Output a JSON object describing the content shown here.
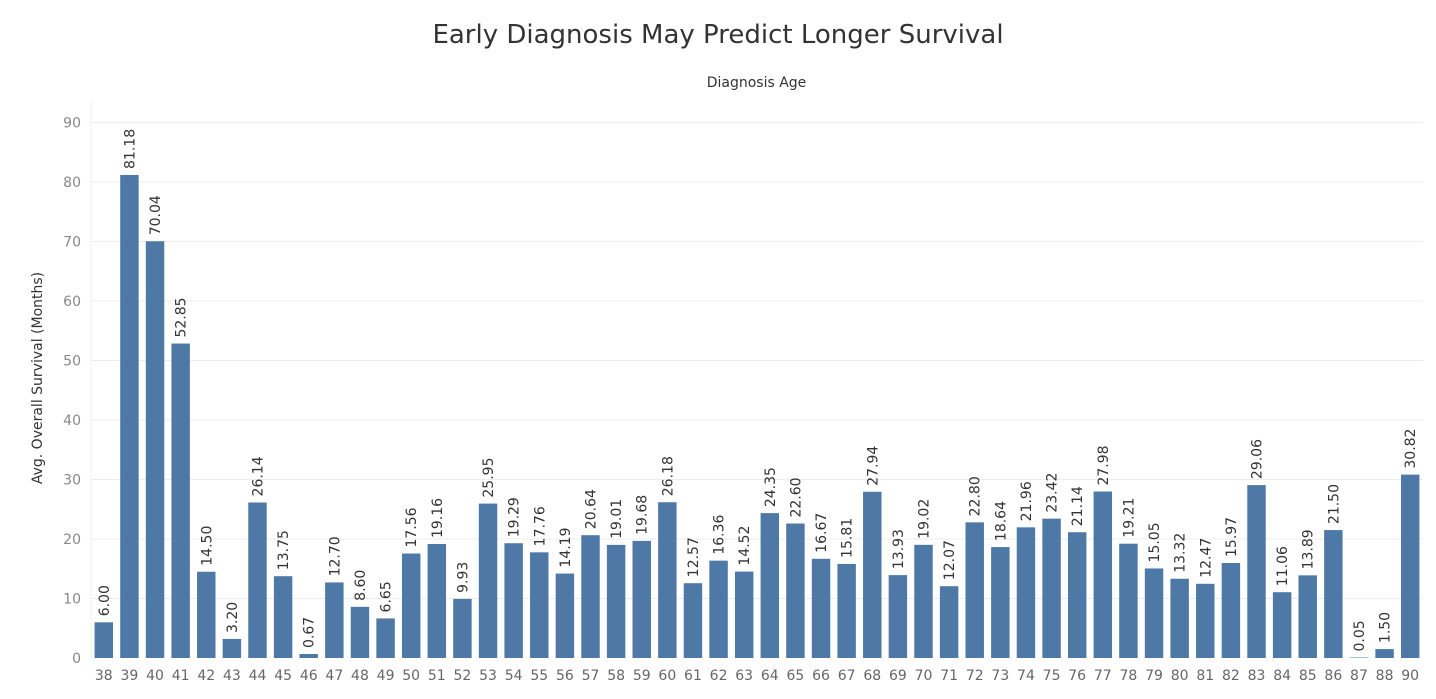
{
  "chart_data": {
    "type": "bar",
    "title": "Early Diagnosis May Predict Longer Survival",
    "subtitle": "Diagnosis Age",
    "xlabel": "",
    "ylabel": "Avg. Overall Survival (Months)",
    "ylim": [
      0,
      93
    ],
    "yticks": [
      0,
      10,
      20,
      30,
      40,
      50,
      60,
      70,
      80,
      90
    ],
    "grid": true,
    "color": "#4e79a7",
    "categories": [
      "38",
      "39",
      "40",
      "41",
      "42",
      "43",
      "44",
      "45",
      "46",
      "47",
      "48",
      "49",
      "50",
      "51",
      "52",
      "53",
      "54",
      "55",
      "56",
      "57",
      "58",
      "59",
      "60",
      "61",
      "62",
      "63",
      "64",
      "65",
      "66",
      "67",
      "68",
      "69",
      "70",
      "71",
      "72",
      "73",
      "74",
      "75",
      "76",
      "77",
      "78",
      "79",
      "80",
      "81",
      "82",
      "83",
      "84",
      "85",
      "86",
      "87",
      "88",
      "90"
    ],
    "values": [
      6.0,
      81.18,
      70.04,
      52.85,
      14.5,
      3.2,
      26.14,
      13.75,
      0.67,
      12.7,
      8.6,
      6.65,
      17.56,
      19.16,
      9.93,
      25.95,
      19.29,
      17.76,
      14.19,
      20.64,
      19.01,
      19.68,
      26.18,
      12.57,
      16.36,
      14.52,
      24.35,
      22.6,
      16.67,
      15.81,
      27.94,
      13.93,
      19.02,
      12.07,
      22.8,
      18.64,
      21.96,
      23.42,
      21.14,
      27.98,
      19.21,
      15.05,
      13.32,
      12.47,
      15.97,
      29.06,
      11.06,
      13.89,
      21.5,
      0.05,
      1.5,
      30.82
    ],
    "data_labels": [
      "6.00",
      "81.18",
      "70.04",
      "52.85",
      "14.50",
      "3.20",
      "26.14",
      "13.75",
      "0.67",
      "12.70",
      "8.60",
      "6.65",
      "17.56",
      "19.16",
      "9.93",
      "25.95",
      "19.29",
      "17.76",
      "14.19",
      "20.64",
      "19.01",
      "19.68",
      "26.18",
      "12.57",
      "16.36",
      "14.52",
      "24.35",
      "22.60",
      "16.67",
      "15.81",
      "27.94",
      "13.93",
      "19.02",
      "12.07",
      "22.80",
      "18.64",
      "21.96",
      "23.42",
      "21.14",
      "27.98",
      "19.21",
      "15.05",
      "13.32",
      "12.47",
      "15.97",
      "29.06",
      "11.06",
      "13.89",
      "21.50",
      "0.05",
      "1.50",
      "30.82"
    ]
  }
}
